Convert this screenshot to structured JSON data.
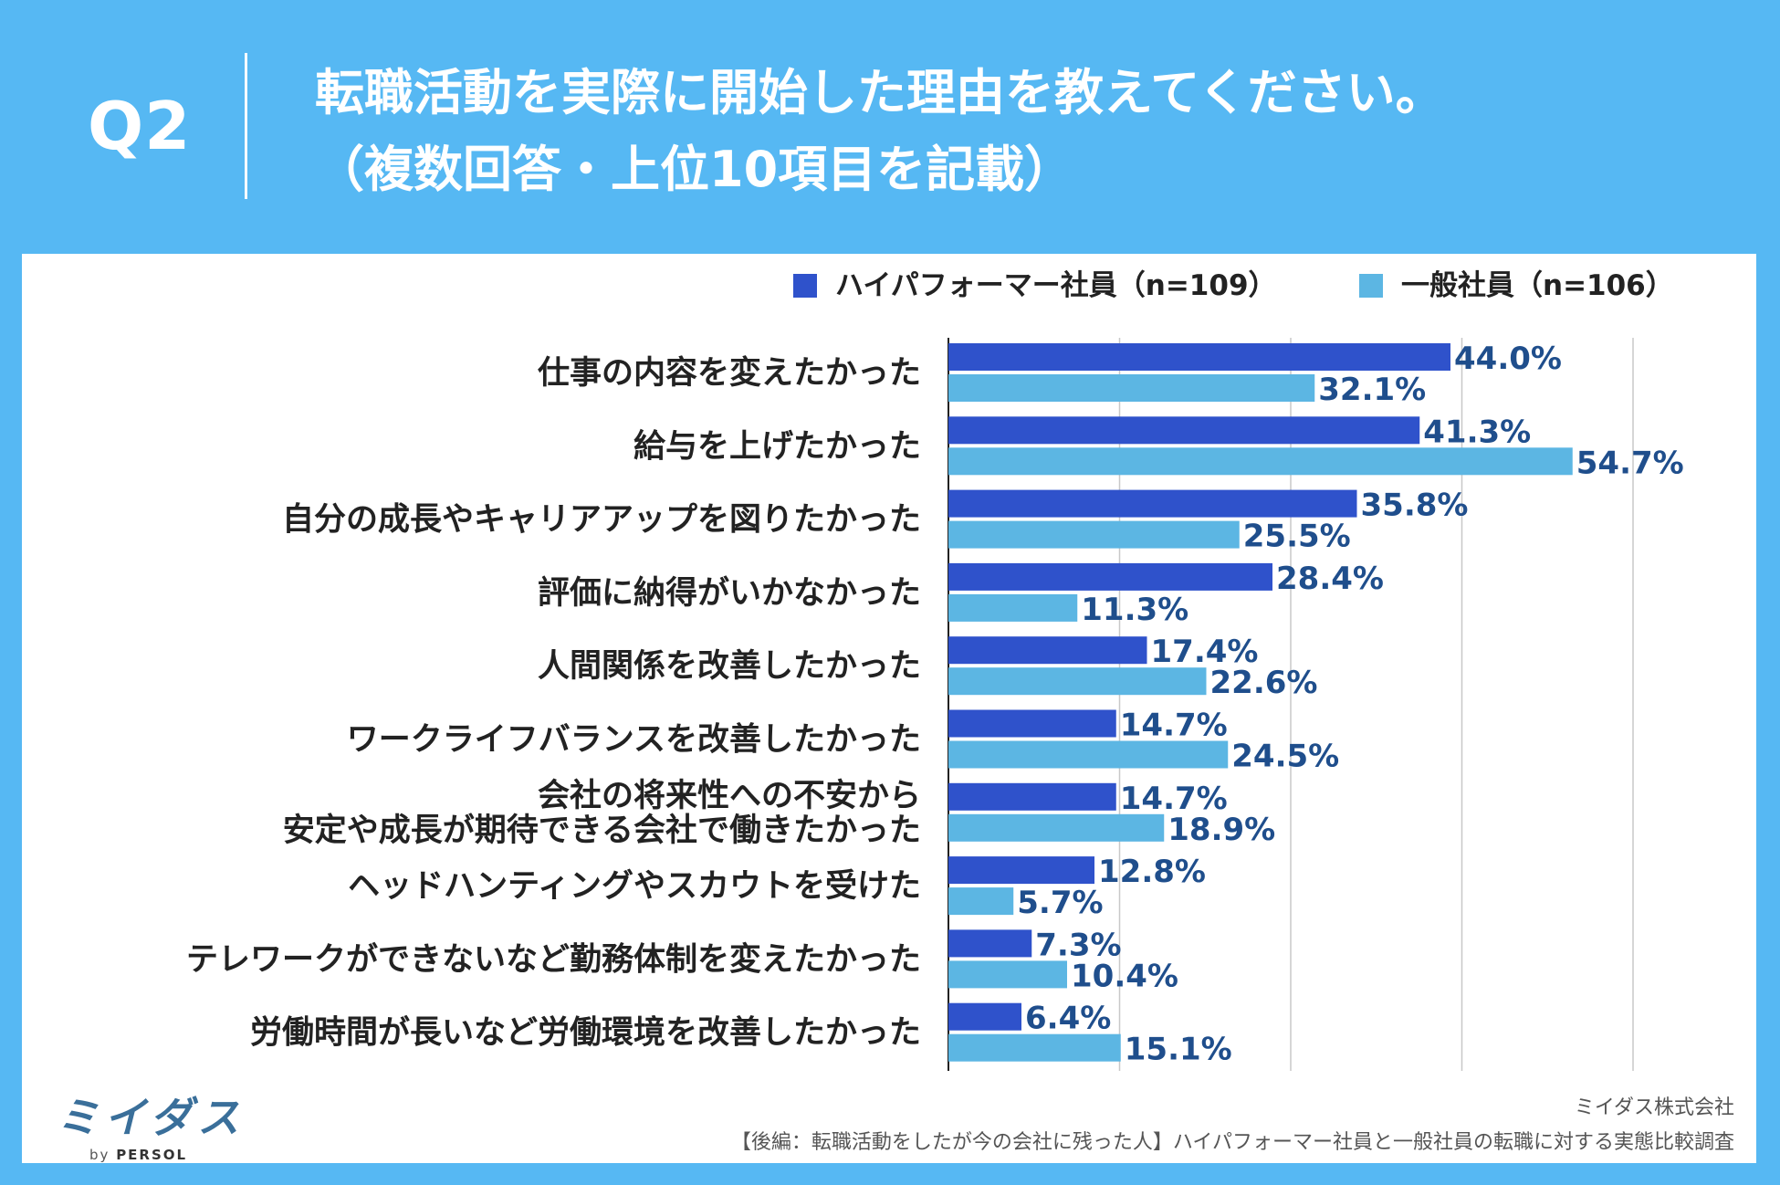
{
  "header": {
    "q_number": "Q2",
    "title_line1": "転職活動を実際に開始した理由を教えてください。",
    "title_line2": "（複数回答・上位10項目を記載）"
  },
  "chart_data": {
    "type": "bar",
    "orientation": "horizontal",
    "title": "転職活動を実際に開始した理由を教えてください。（複数回答・上位10項目を記載）",
    "categories": [
      "仕事の内容を変えたかった",
      "給与を上げたかった",
      "自分の成長やキャリアアップを図りたかった",
      "評価に納得がいかなかった",
      "人間関係を改善したかった",
      "ワークライフバランスを改善したかった",
      "会社の将来性への不安から\n安定や成長が期待できる会社で働きたかった",
      "ヘッドハンティングやスカウトを受けた",
      "テレワークができないなど勤務体制を変えたかった",
      "労働時間が長いなど労働環境を改善したかった"
    ],
    "series": [
      {
        "name": "ハイパフォーマー社員（n=109）",
        "color": "#2f52cb",
        "values": [
          44.0,
          41.3,
          35.8,
          28.4,
          17.4,
          14.7,
          14.7,
          12.8,
          7.3,
          6.4
        ],
        "labels": [
          "44.0%",
          "41.3%",
          "35.8%",
          "28.4%",
          "17.4%",
          "14.7%",
          "14.7%",
          "12.8%",
          "7.3%",
          "6.4%"
        ]
      },
      {
        "name": "一般社員（n=106）",
        "color": "#5cb6e3",
        "values": [
          32.1,
          54.7,
          25.5,
          11.3,
          22.6,
          24.5,
          18.9,
          5.7,
          10.4,
          15.1
        ],
        "labels": [
          "32.1%",
          "54.7%",
          "25.5%",
          "11.3%",
          "22.6%",
          "24.5%",
          "18.9%",
          "5.7%",
          "10.4%",
          "15.1%"
        ]
      }
    ],
    "xlim": [
      0,
      60
    ],
    "gridlines": [
      15,
      30,
      45,
      60
    ],
    "grid": true,
    "legend_position": "top-right",
    "label_color": "#1f4e8c"
  },
  "footer": {
    "logo_text": "ミイダス",
    "logo_by": "by",
    "logo_brand": "PERSOL",
    "company": "ミイダス株式会社",
    "survey_name": "【後編：転職活動をしたが今の会社に残った人】ハイパフォーマー社員と一般社員の転職に対する実態比較調査"
  }
}
